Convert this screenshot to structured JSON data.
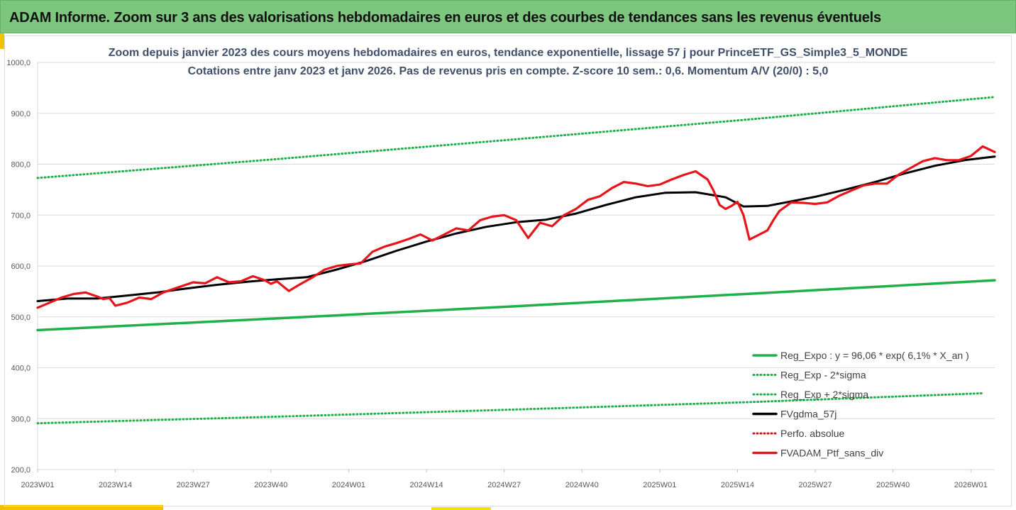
{
  "header": {
    "title": "ADAM Informe. Zoom sur 3 ans des valorisations hebdomadaires en euros et des courbes de tendances sans les revenus éventuels"
  },
  "chart_data": {
    "type": "line",
    "title": "Zoom depuis janvier 2023 des cours moyens hebdomadaires  en euros, tendance exponentielle, lissage 57 j pour PrinceETF_GS_Simple3_5_MONDE",
    "subtitle": "Cotations entre janv 2023 et janv 2026. Pas de revenus pris en compte. Z-score 10 sem.: 0,6. Momentum A/V (20/0) : 5,0",
    "xlabel": "",
    "ylabel": "",
    "ylim": [
      200,
      1000
    ],
    "xlim": [
      0,
      160
    ],
    "y_ticks": [
      "200,0",
      "300,0",
      "400,0",
      "500,0",
      "600,0",
      "700,0",
      "800,0",
      "900,0",
      "1000,0"
    ],
    "y_tick_values": [
      200,
      300,
      400,
      500,
      600,
      700,
      800,
      900,
      1000
    ],
    "x_ticks": [
      "2023W01",
      "2023W14",
      "2023W27",
      "2023W40",
      "2024W01",
      "2024W14",
      "2024W27",
      "2024W40",
      "2025W01",
      "2025W14",
      "2025W27",
      "2025W40",
      "2026W01"
    ],
    "x_tick_positions": [
      0,
      13,
      26,
      39,
      52,
      65,
      78,
      91,
      104,
      117,
      130,
      143,
      156
    ],
    "grid": "horizontal",
    "legend_position": "bottom-right",
    "legend": [
      "Reg_Expo : y = 96,06 * exp( 6,1% *  X_an )",
      "Reg_Exp - 2*sigma",
      "Reg_Exp + 2*sigma",
      "FVgdma_57j",
      "Perfo. absolue",
      "FVADAM_Ptf_sans_div"
    ],
    "series": [
      {
        "name": "Reg_Expo : y = 96,06 * exp( 6,1% *  X_an )",
        "style": "solid",
        "color": "#1fb04a",
        "x": [
          0,
          40,
          80,
          120,
          160
        ],
        "values": [
          474,
          497,
          521,
          546,
          572
        ]
      },
      {
        "name": "Reg_Exp - 2*sigma",
        "style": "dotted",
        "color": "#1fb04a",
        "x": [
          0,
          40,
          80,
          120,
          158
        ],
        "values": [
          291,
          304,
          318,
          333,
          350
        ]
      },
      {
        "name": "Reg_Exp + 2*sigma",
        "style": "dotted",
        "color": "#1fb04a",
        "x": [
          0,
          40,
          80,
          120,
          160
        ],
        "values": [
          773,
          810,
          849,
          889,
          932
        ]
      },
      {
        "name": "FVgdma_57j",
        "style": "solid",
        "color": "#000000",
        "x": [
          0,
          5,
          10,
          15,
          20,
          25,
          30,
          35,
          40,
          45,
          50,
          55,
          60,
          65,
          70,
          75,
          80,
          85,
          90,
          95,
          100,
          105,
          110,
          115,
          118,
          122,
          126,
          130,
          135,
          140,
          145,
          150,
          155,
          160
        ],
        "values": [
          531,
          536,
          536,
          542,
          548,
          556,
          563,
          569,
          574,
          578,
          593,
          610,
          630,
          648,
          664,
          677,
          686,
          691,
          703,
          720,
          735,
          744,
          745,
          735,
          717,
          718,
          727,
          736,
          750,
          765,
          782,
          797,
          808,
          815
        ]
      },
      {
        "name": "Perfo. absolue",
        "style": "dotted",
        "color": "#d0131b",
        "x": [],
        "values": []
      },
      {
        "name": "FVADAM_Ptf_sans_div",
        "style": "solid",
        "color": "#e8141b",
        "x": [
          0,
          2,
          4,
          6,
          8,
          10,
          11,
          12,
          13,
          15,
          17,
          19,
          21,
          24,
          26,
          28,
          30,
          32,
          34,
          36,
          38,
          39,
          40,
          42,
          44,
          46,
          48,
          50,
          52,
          54,
          56,
          58,
          60,
          62,
          64,
          66,
          68,
          70,
          72,
          74,
          76,
          78,
          80,
          82,
          83,
          84,
          86,
          88,
          90,
          92,
          94,
          96,
          98,
          100,
          102,
          104,
          106,
          108,
          110,
          112,
          113,
          114,
          115,
          116,
          117,
          118,
          119,
          120,
          122,
          123,
          124,
          126,
          128,
          130,
          132,
          134,
          136,
          138,
          140,
          142,
          144,
          146,
          148,
          150,
          152,
          154,
          156,
          158,
          160
        ],
        "values": [
          518,
          528,
          538,
          545,
          548,
          540,
          535,
          537,
          522,
          528,
          538,
          535,
          548,
          560,
          568,
          566,
          578,
          568,
          570,
          580,
          572,
          565,
          570,
          551,
          565,
          578,
          593,
          600,
          603,
          605,
          628,
          638,
          645,
          653,
          662,
          650,
          662,
          674,
          670,
          690,
          697,
          700,
          690,
          655,
          670,
          685,
          678,
          700,
          712,
          730,
          737,
          753,
          765,
          762,
          757,
          760,
          770,
          779,
          786,
          770,
          748,
          720,
          712,
          718,
          726,
          700,
          652,
          658,
          670,
          690,
          708,
          725,
          724,
          722,
          725,
          738,
          748,
          758,
          762,
          762,
          780,
          793,
          806,
          812,
          808,
          808,
          816,
          835,
          824
        ]
      }
    ]
  }
}
